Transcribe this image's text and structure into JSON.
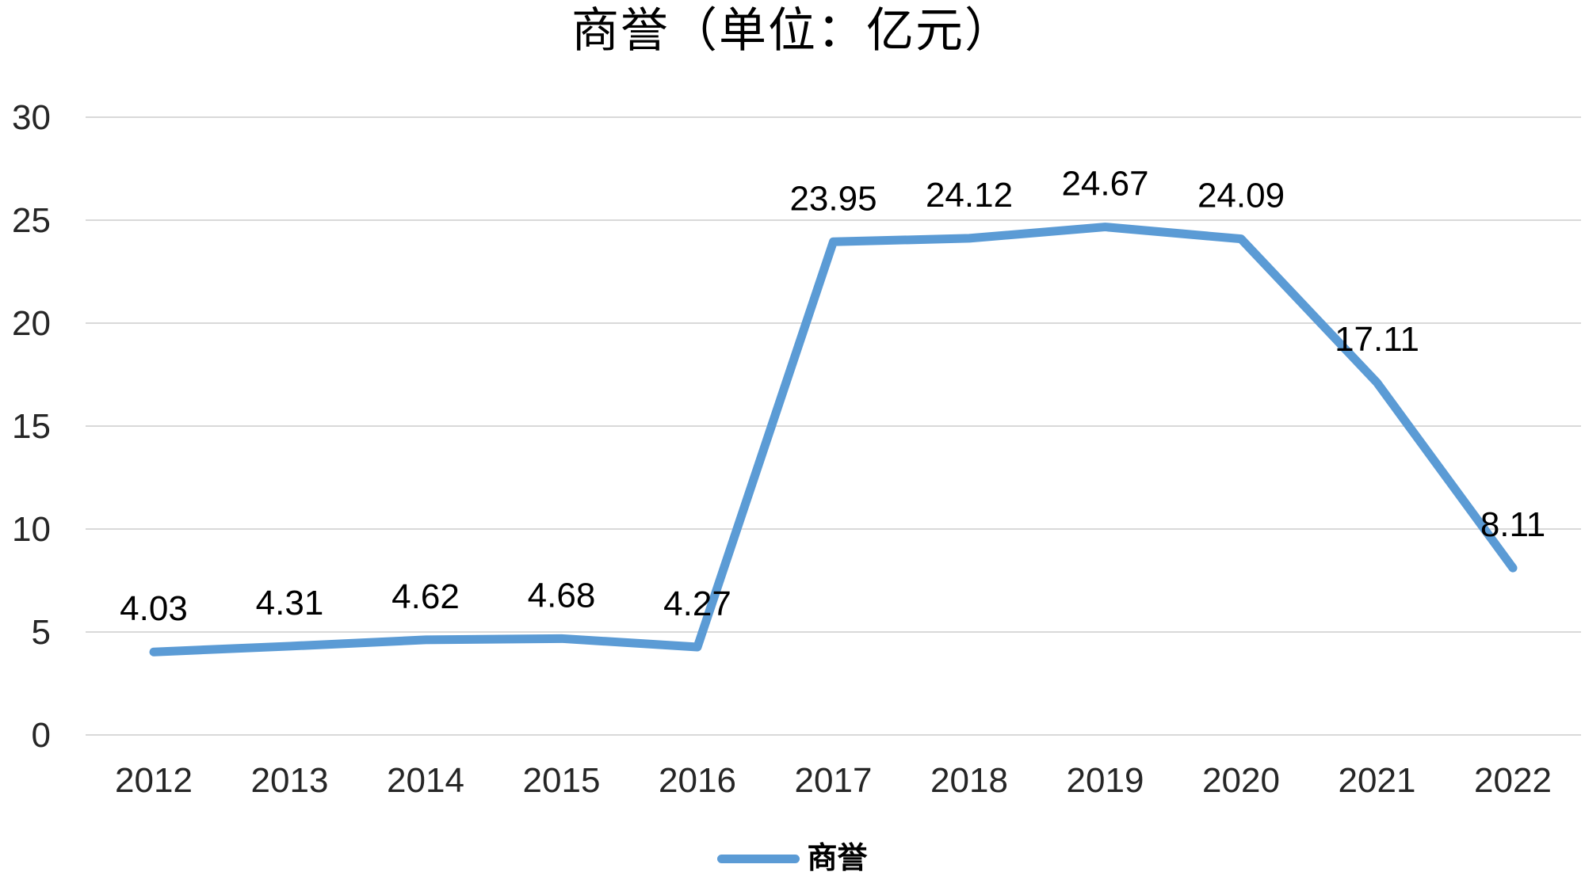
{
  "title": "商誉（单位：亿元）",
  "legend": {
    "label": "商誉",
    "line_color": "#5B9BD5"
  },
  "chart_data": {
    "type": "line",
    "title": "商誉（单位：亿元）",
    "categories": [
      "2012",
      "2013",
      "2014",
      "2015",
      "2016",
      "2017",
      "2018",
      "2019",
      "2020",
      "2021",
      "2022"
    ],
    "series": [
      {
        "name": "商誉",
        "values": [
          4.03,
          4.31,
          4.62,
          4.68,
          4.27,
          23.95,
          24.12,
          24.67,
          24.09,
          17.11,
          8.11
        ]
      }
    ],
    "data_labels": [
      "4.03",
      "4.31",
      "4.62",
      "4.68",
      "4.27",
      "23.95",
      "24.12",
      "24.67",
      "24.09",
      "17.11",
      "8.11"
    ],
    "xlabel": "",
    "ylabel": "",
    "ylim": [
      0,
      30
    ],
    "yticks": [
      0,
      5,
      10,
      15,
      20,
      25,
      30
    ],
    "grid": true,
    "legend_position": "bottom",
    "colors": {
      "line": "#5B9BD5",
      "gridline": "#D9D9D9",
      "axis_label": "#262626",
      "data_label": "#000000"
    }
  }
}
